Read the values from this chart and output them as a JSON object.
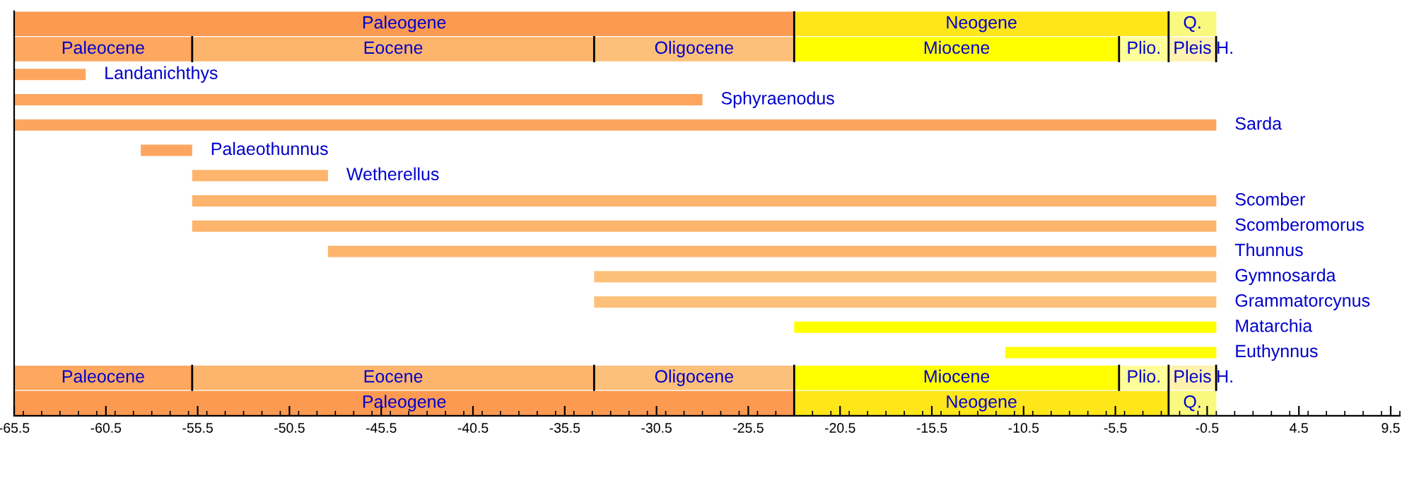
{
  "chart_data": {
    "type": "bar",
    "orientation": "horizontal",
    "tick_labels": "x",
    "grid": false,
    "categories": [
      null,
      null,
      "Landanichthys",
      "Sphyraenodus",
      "Sarda",
      "Palaeothunnus",
      "Wetherellus",
      "Scomber",
      "Scomberomorus",
      "Thunnus",
      "Gymnosarda",
      "Grammatorcynus",
      "Matarchia",
      "Euthynnus",
      null,
      null
    ],
    "xlim": [
      -65.5,
      10
    ],
    "xticks": [
      -65.5,
      -60.5,
      -55.5,
      -50.5,
      -45.5,
      -40.5,
      -35.5,
      -30.5,
      -25.5,
      -20.5,
      -15.5,
      -10.5,
      -5.5,
      -0.5,
      4.5,
      9.5
    ],
    "series": [
      {
        "type": "bar",
        "base": [
          null,
          null,
          -65.5,
          -65.5,
          -65.5,
          -58.6,
          -55.8,
          -55.8,
          -55.8,
          -48.4,
          -33.9,
          -33.9,
          -23.0,
          -11.5,
          null,
          null
        ],
        "values": [
          null,
          null,
          3.9,
          37.5,
          65.5,
          2.8,
          7.4,
          55.8,
          55.8,
          48.4,
          33.9,
          33.9,
          23.0,
          11.5,
          null,
          null
        ],
        "colors": [
          null,
          null,
          "#fda55f",
          "#fda55f",
          "#fda55f",
          "#fda55f",
          "#fdb46c",
          "#fdb46c",
          "#fdb46c",
          "#fdb46c",
          "#fdc07a",
          "#fdc07a",
          "#ffff00",
          "#ffff00",
          null,
          null
        ]
      },
      {
        "name": "Paleogene",
        "color": "#fd9a52",
        "base": [
          -65.5,
          null,
          null,
          null,
          null,
          null,
          null,
          null,
          null,
          null,
          null,
          null,
          null,
          null,
          null,
          -65.5
        ],
        "values": [
          42.5,
          null,
          null,
          null,
          null,
          null,
          null,
          null,
          null,
          null,
          null,
          null,
          null,
          null,
          null,
          42.5
        ]
      },
      {
        "name": "Neogene",
        "color": "#ffe619",
        "base": [
          -23.0,
          null,
          null,
          null,
          null,
          null,
          null,
          null,
          null,
          null,
          null,
          null,
          null,
          null,
          null,
          -23.0
        ],
        "values": [
          20.4,
          null,
          null,
          null,
          null,
          null,
          null,
          null,
          null,
          null,
          null,
          null,
          null,
          null,
          null,
          20.4
        ]
      },
      {
        "name": "Q.",
        "color": "#f9f97f",
        "base": [
          -2.6,
          null,
          null,
          null,
          null,
          null,
          null,
          null,
          null,
          null,
          null,
          null,
          null,
          null,
          null,
          -2.6
        ],
        "values": [
          2.6,
          null,
          null,
          null,
          null,
          null,
          null,
          null,
          null,
          null,
          null,
          null,
          null,
          null,
          null,
          2.6
        ]
      },
      {
        "name": "Paleocene",
        "color": "#fda75f",
        "base": [
          null,
          -65.5,
          null,
          null,
          null,
          null,
          null,
          null,
          null,
          null,
          null,
          null,
          null,
          null,
          -65.5,
          null
        ],
        "values": [
          null,
          9.7,
          null,
          null,
          null,
          null,
          null,
          null,
          null,
          null,
          null,
          null,
          null,
          null,
          9.7,
          null
        ]
      },
      {
        "name": "Eocene",
        "color": "#fdb46c",
        "base": [
          null,
          -55.8,
          null,
          null,
          null,
          null,
          null,
          null,
          null,
          null,
          null,
          null,
          null,
          null,
          -55.8,
          null
        ],
        "values": [
          null,
          21.9,
          null,
          null,
          null,
          null,
          null,
          null,
          null,
          null,
          null,
          null,
          null,
          null,
          21.9,
          null
        ]
      },
      {
        "name": "Oligocene",
        "color": "#fdc07a",
        "base": [
          null,
          -33.9,
          null,
          null,
          null,
          null,
          null,
          null,
          null,
          null,
          null,
          null,
          null,
          null,
          -33.9,
          null
        ],
        "values": [
          null,
          10.9,
          null,
          null,
          null,
          null,
          null,
          null,
          null,
          null,
          null,
          null,
          null,
          null,
          10.9,
          null
        ]
      },
      {
        "name": "Miocene",
        "color": "#ffff00",
        "base": [
          null,
          -23.0,
          null,
          null,
          null,
          null,
          null,
          null,
          null,
          null,
          null,
          null,
          null,
          null,
          -23.0,
          null
        ],
        "values": [
          null,
          17.7,
          null,
          null,
          null,
          null,
          null,
          null,
          null,
          null,
          null,
          null,
          null,
          null,
          17.7,
          null
        ]
      },
      {
        "name": "Plio.",
        "color": "#ffff99",
        "base": [
          null,
          -5.3,
          null,
          null,
          null,
          null,
          null,
          null,
          null,
          null,
          null,
          null,
          null,
          null,
          -5.3,
          null
        ],
        "values": [
          null,
          2.7,
          null,
          null,
          null,
          null,
          null,
          null,
          null,
          null,
          null,
          null,
          null,
          null,
          2.7,
          null
        ]
      },
      {
        "name": "Pleis",
        "color": "#fff2ae",
        "base": [
          null,
          -2.6,
          null,
          null,
          null,
          null,
          null,
          null,
          null,
          null,
          null,
          null,
          null,
          null,
          -2.6,
          null
        ],
        "values": [
          null,
          2.59,
          null,
          null,
          null,
          null,
          null,
          null,
          null,
          null,
          null,
          null,
          null,
          null,
          2.59,
          null
        ]
      },
      {
        "name": "H.",
        "color": "#fef2e0",
        "base": [
          null,
          -0.01,
          null,
          null,
          null,
          null,
          null,
          null,
          null,
          null,
          null,
          null,
          null,
          null,
          -0.01,
          null
        ],
        "values": [
          null,
          0.01,
          null,
          null,
          null,
          null,
          null,
          null,
          null,
          null,
          null,
          null,
          null,
          null,
          0.01,
          null
        ]
      }
    ]
  }
}
